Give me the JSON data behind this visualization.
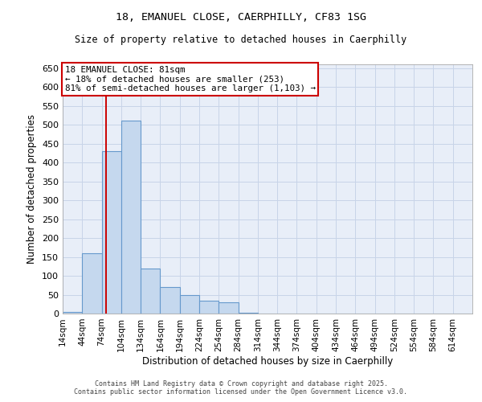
{
  "title_line1": "18, EMANUEL CLOSE, CAERPHILLY, CF83 1SG",
  "title_line2": "Size of property relative to detached houses in Caerphilly",
  "xlabel": "Distribution of detached houses by size in Caerphilly",
  "ylabel": "Number of detached properties",
  "footer_line1": "Contains HM Land Registry data © Crown copyright and database right 2025.",
  "footer_line2": "Contains public sector information licensed under the Open Government Licence v3.0.",
  "bin_labels": [
    "14sqm",
    "44sqm",
    "74sqm",
    "104sqm",
    "134sqm",
    "164sqm",
    "194sqm",
    "224sqm",
    "254sqm",
    "284sqm",
    "314sqm",
    "344sqm",
    "374sqm",
    "404sqm",
    "434sqm",
    "464sqm",
    "494sqm",
    "524sqm",
    "554sqm",
    "584sqm",
    "614sqm"
  ],
  "bin_starts": [
    14,
    44,
    74,
    104,
    134,
    164,
    194,
    224,
    254,
    284,
    314,
    344,
    374,
    404,
    434,
    464,
    494,
    524,
    554,
    584,
    614
  ],
  "bin_width": 30,
  "bar_heights": [
    5,
    160,
    430,
    510,
    120,
    70,
    50,
    35,
    30,
    2,
    0,
    0,
    0,
    0,
    0,
    0,
    0,
    0,
    0,
    1,
    1
  ],
  "bar_color": "#c5d8ee",
  "bar_edge_color": "#6699cc",
  "grid_color": "#c8d4e8",
  "background_color": "#e8eef8",
  "vline_x": 81,
  "vline_color": "#cc0000",
  "annotation_text": "18 EMANUEL CLOSE: 81sqm\n← 18% of detached houses are smaller (253)\n81% of semi-detached houses are larger (1,103) →",
  "annotation_box_color": "#cc0000",
  "ylim": [
    0,
    660
  ],
  "yticks": [
    0,
    50,
    100,
    150,
    200,
    250,
    300,
    350,
    400,
    450,
    500,
    550,
    600,
    650
  ],
  "fig_width": 6.0,
  "fig_height": 5.0,
  "dpi": 100
}
